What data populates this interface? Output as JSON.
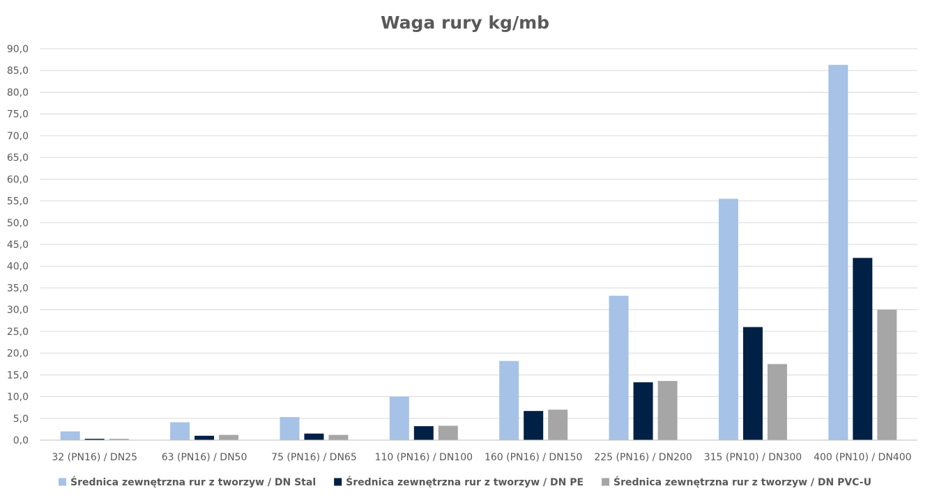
{
  "chart_data": {
    "type": "bar",
    "title": "Waga rury kg/mb",
    "xlabel": "",
    "ylabel": "",
    "ylim": [
      0,
      90
    ],
    "y_ticks": [
      "0,0",
      "5,0",
      "10,0",
      "15,0",
      "20,0",
      "25,0",
      "30,0",
      "35,0",
      "40,0",
      "45,0",
      "50,0",
      "55,0",
      "60,0",
      "65,0",
      "70,0",
      "75,0",
      "80,0",
      "85,0",
      "90,0"
    ],
    "grid": true,
    "legend_position": "bottom",
    "categories": [
      "32 (PN16) / DN25",
      "63 (PN16) / DN50",
      "75 (PN16) / DN65",
      "110 (PN16) / DN100",
      "160 (PN16) / DN150",
      "225 (PN16) / DN200",
      "315 (PN10) / DN300",
      "400 (PN10) / DN400"
    ],
    "series": [
      {
        "name": "Średnica  zewnętrzna rur z tworzyw / DN Stal",
        "color": "#a6c2e6",
        "values": [
          2.0,
          4.1,
          5.3,
          10.0,
          18.2,
          33.2,
          55.5,
          86.3
        ]
      },
      {
        "name": "Średnica  zewnętrzna rur z tworzyw / DN PE",
        "color": "#002045",
        "values": [
          0.3,
          1.0,
          1.5,
          3.2,
          6.7,
          13.3,
          26.0,
          41.9
        ]
      },
      {
        "name": "Średnica  zewnętrzna rur z tworzyw / DN  PVC-U",
        "color": "#a6a6a6",
        "values": [
          0.3,
          1.2,
          1.2,
          3.3,
          7.0,
          13.6,
          17.5,
          30.0
        ]
      }
    ]
  }
}
